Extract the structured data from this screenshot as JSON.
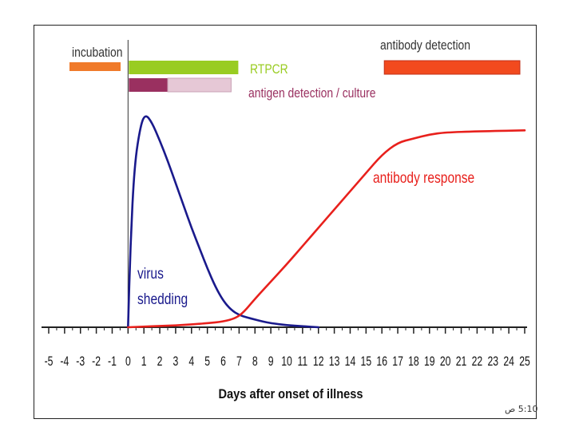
{
  "chart_data": {
    "type": "line",
    "xlabel": "Days after onset of illness",
    "ylabel": "",
    "xlim": [
      -5,
      25
    ],
    "ylim": [
      0,
      100
    ],
    "x_ticks": [
      -5,
      -4,
      -3,
      -2,
      -1,
      0,
      1,
      2,
      3,
      4,
      5,
      6,
      7,
      8,
      9,
      10,
      11,
      12,
      13,
      14,
      15,
      16,
      17,
      18,
      19,
      20,
      21,
      22,
      23,
      24,
      25
    ],
    "x_tick_labels": [
      "-5",
      "-4",
      "-3",
      "-2",
      "-1",
      "0",
      "1",
      "2",
      "3",
      "4",
      "5",
      "6",
      "7",
      "8",
      "9",
      "10",
      "11",
      "12",
      "13",
      "14",
      "15",
      "16",
      "17",
      "18",
      "19",
      "20",
      "21",
      "22",
      "23",
      "24",
      "25"
    ],
    "series": [
      {
        "name": "virus shedding",
        "label_lines": [
          "virus",
          "shedding"
        ],
        "color": "#1a1a8c",
        "points": [
          [
            0,
            0
          ],
          [
            0.15,
            40
          ],
          [
            0.4,
            80
          ],
          [
            0.8,
            100
          ],
          [
            1.1,
            105
          ],
          [
            1.5,
            101
          ],
          [
            2,
            92
          ],
          [
            2.5,
            82
          ],
          [
            3,
            71
          ],
          [
            3.5,
            60
          ],
          [
            4,
            49
          ],
          [
            4.5,
            39
          ],
          [
            5,
            29
          ],
          [
            5.5,
            20
          ],
          [
            6,
            13
          ],
          [
            6.5,
            8.5
          ],
          [
            7,
            6
          ],
          [
            7.5,
            4.8
          ],
          [
            8,
            3.8
          ],
          [
            8.5,
            2.8
          ],
          [
            9,
            2
          ],
          [
            10,
            1
          ],
          [
            11,
            0.5
          ],
          [
            12,
            0
          ]
        ]
      },
      {
        "name": "antibody response",
        "label_lines": [
          "antibody response"
        ],
        "color": "#e8201c",
        "points": [
          [
            0,
            0
          ],
          [
            1,
            0.3
          ],
          [
            2,
            0.6
          ],
          [
            3,
            0.9
          ],
          [
            4,
            1.4
          ],
          [
            5,
            2
          ],
          [
            6,
            2.8
          ],
          [
            6.8,
            4.5
          ],
          [
            7.3,
            7.5
          ],
          [
            8,
            14
          ],
          [
            9,
            22.5
          ],
          [
            10,
            31
          ],
          [
            11,
            40
          ],
          [
            12,
            49
          ],
          [
            13,
            58
          ],
          [
            14,
            67
          ],
          [
            15,
            76
          ],
          [
            16,
            85
          ],
          [
            17,
            91
          ],
          [
            18,
            93
          ],
          [
            19,
            95
          ],
          [
            20,
            96
          ],
          [
            22,
            96.5
          ],
          [
            25,
            97
          ]
        ]
      }
    ],
    "bars": [
      {
        "name": "incubation",
        "label": "incubation",
        "start": -5,
        "end": 0,
        "color": "#f07a2a",
        "text_color": "#333333"
      },
      {
        "name": "RTPCR",
        "label": "RTPCR",
        "start": 0,
        "end": 7,
        "color": "#99cc22",
        "text_color": "#99cc22"
      },
      {
        "name": "antigen detection / culture",
        "label": "antigen detection / culture",
        "start": 0,
        "end": 7,
        "solid_end": 2.5,
        "color": "#9a3060",
        "light_color": "#e6c8d6",
        "text_color": "#9a3060"
      },
      {
        "name": "antibody detection",
        "label": "antibody detection",
        "start": 16,
        "end": 25,
        "color": "#f24a1e",
        "text_color": "#333333"
      }
    ]
  },
  "footer": {
    "slide_number": "5:10 ص"
  }
}
